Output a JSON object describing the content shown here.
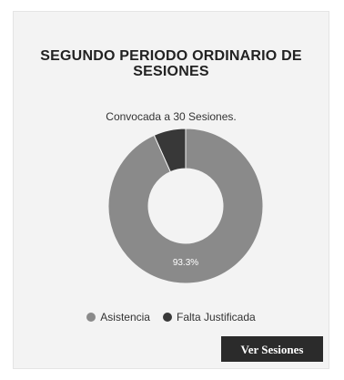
{
  "card": {
    "title_line1": "SEGUNDO PERIODO ORDINARIO DE",
    "title_line2": "SESIONES",
    "subtitle": "Convocada a 30 Sesiones.",
    "button_label": "Ver Sesiones"
  },
  "chart_data": {
    "type": "pie",
    "donut": true,
    "categories": [
      "Asistencia",
      "Falta Justificada"
    ],
    "values": [
      93.3,
      6.7
    ],
    "data_labels": [
      "93.3%",
      ""
    ],
    "colors": [
      "#8a8a8a",
      "#383838"
    ],
    "legend_position": "bottom"
  }
}
